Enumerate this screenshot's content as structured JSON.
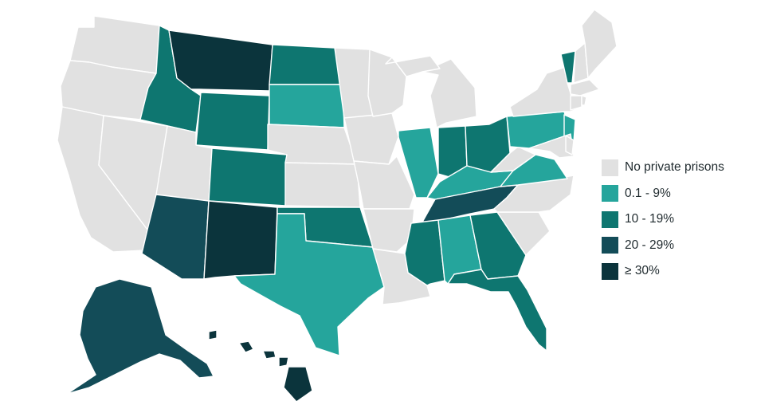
{
  "legend": {
    "items": [
      {
        "label": "No private prisons",
        "color": "#e1e1e1"
      },
      {
        "label": "0.1 - 9%",
        "color": "#25a59c"
      },
      {
        "label": "10 - 19%",
        "color": "#0e7670"
      },
      {
        "label": "20 - 29%",
        "color": "#134c58"
      },
      {
        "label": "≥ 30%",
        "color": "#0b343c"
      }
    ]
  },
  "states": [
    {
      "id": "WA",
      "name": "Washington",
      "cat": 0
    },
    {
      "id": "OR",
      "name": "Oregon",
      "cat": 0
    },
    {
      "id": "CA",
      "name": "California",
      "cat": 0
    },
    {
      "id": "NV",
      "name": "Nevada",
      "cat": 0
    },
    {
      "id": "ID",
      "name": "Idaho",
      "cat": 2
    },
    {
      "id": "MT",
      "name": "Montana",
      "cat": 4
    },
    {
      "id": "WY",
      "name": "Wyoming",
      "cat": 2
    },
    {
      "id": "UT",
      "name": "Utah",
      "cat": 0
    },
    {
      "id": "AZ",
      "name": "Arizona",
      "cat": 3
    },
    {
      "id": "CO",
      "name": "Colorado",
      "cat": 2
    },
    {
      "id": "NM",
      "name": "New Mexico",
      "cat": 4
    },
    {
      "id": "ND",
      "name": "North Dakota",
      "cat": 2
    },
    {
      "id": "SD",
      "name": "South Dakota",
      "cat": 1
    },
    {
      "id": "NE",
      "name": "Nebraska",
      "cat": 0
    },
    {
      "id": "KS",
      "name": "Kansas",
      "cat": 0
    },
    {
      "id": "OK",
      "name": "Oklahoma",
      "cat": 2
    },
    {
      "id": "TX",
      "name": "Texas",
      "cat": 1
    },
    {
      "id": "MN",
      "name": "Minnesota",
      "cat": 0
    },
    {
      "id": "IA",
      "name": "Iowa",
      "cat": 0
    },
    {
      "id": "MO",
      "name": "Missouri",
      "cat": 0
    },
    {
      "id": "AR",
      "name": "Arkansas",
      "cat": 0
    },
    {
      "id": "LA",
      "name": "Louisiana",
      "cat": 0
    },
    {
      "id": "WI",
      "name": "Wisconsin",
      "cat": 0
    },
    {
      "id": "IL",
      "name": "Illinois",
      "cat": 1
    },
    {
      "id": "MI",
      "name": "Michigan",
      "cat": 0
    },
    {
      "id": "IN",
      "name": "Indiana",
      "cat": 2
    },
    {
      "id": "OH",
      "name": "Ohio",
      "cat": 2
    },
    {
      "id": "KY",
      "name": "Kentucky",
      "cat": 1
    },
    {
      "id": "TN",
      "name": "Tennessee",
      "cat": 3
    },
    {
      "id": "MS",
      "name": "Mississippi",
      "cat": 2
    },
    {
      "id": "AL",
      "name": "Alabama",
      "cat": 1
    },
    {
      "id": "GA",
      "name": "Georgia",
      "cat": 2
    },
    {
      "id": "FL",
      "name": "Florida",
      "cat": 2
    },
    {
      "id": "SC",
      "name": "South Carolina",
      "cat": 0
    },
    {
      "id": "NC",
      "name": "North Carolina",
      "cat": 0
    },
    {
      "id": "VA",
      "name": "Virginia",
      "cat": 1
    },
    {
      "id": "WV",
      "name": "West Virginia",
      "cat": 0
    },
    {
      "id": "PA",
      "name": "Pennsylvania",
      "cat": 1
    },
    {
      "id": "NY",
      "name": "New York",
      "cat": 0
    },
    {
      "id": "NJ",
      "name": "New Jersey",
      "cat": 1
    },
    {
      "id": "MD",
      "name": "Maryland",
      "cat": 0
    },
    {
      "id": "DE",
      "name": "Delaware",
      "cat": 0
    },
    {
      "id": "VT",
      "name": "Vermont",
      "cat": 2
    },
    {
      "id": "NH",
      "name": "New Hampshire",
      "cat": 0
    },
    {
      "id": "ME",
      "name": "Maine",
      "cat": 0
    },
    {
      "id": "MA",
      "name": "Massachusetts",
      "cat": 0
    },
    {
      "id": "CT",
      "name": "Connecticut",
      "cat": 0
    },
    {
      "id": "RI",
      "name": "Rhode Island",
      "cat": 0
    },
    {
      "id": "AK",
      "name": "Alaska",
      "cat": 3
    },
    {
      "id": "HI",
      "name": "Hawaii",
      "cat": 4
    }
  ]
}
